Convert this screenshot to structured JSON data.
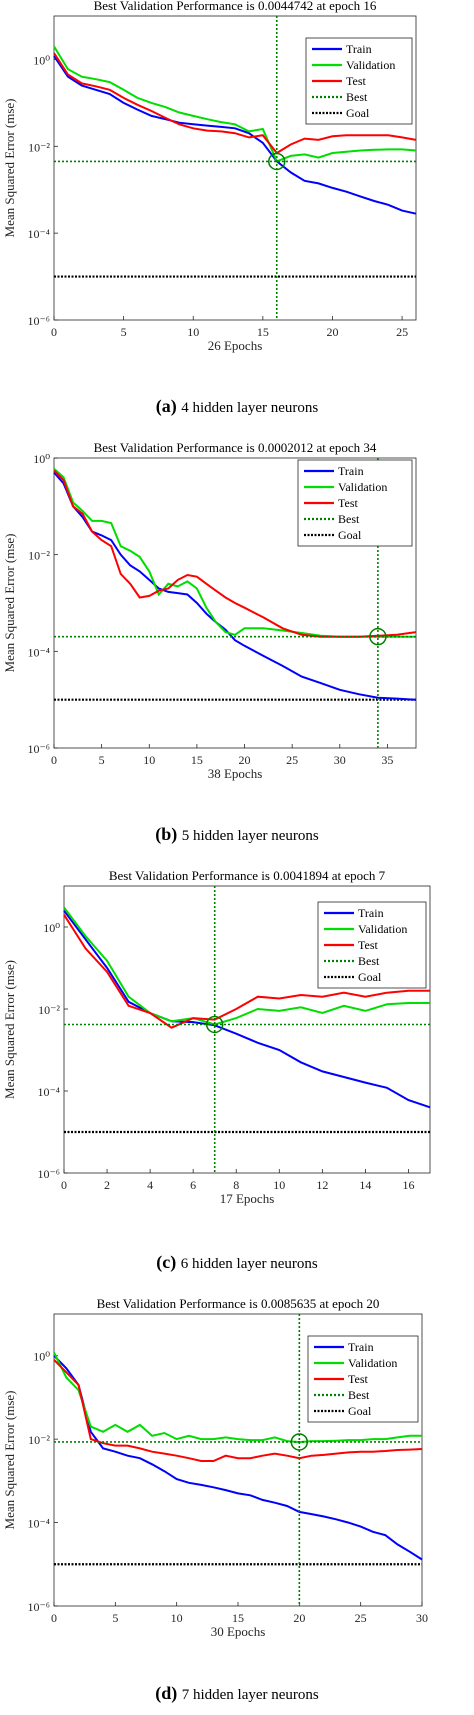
{
  "colors": {
    "train": "#0000ff",
    "validation": "#00dd00",
    "test": "#ff0000",
    "best": "#008000",
    "goal": "#000000"
  },
  "chart_data": [
    {
      "type": "line",
      "title": "Best Validation Performance is 0.0044742 at epoch 16",
      "xlabel": "26 Epochs",
      "ylabel": "Mean Squared Error  (mse)",
      "caption_letter": "(a)",
      "caption_text": "4 hidden layer neurons",
      "yscale": "log",
      "xlim": [
        0,
        26
      ],
      "ylim": [
        1e-06,
        10
      ],
      "xticks": [
        0,
        5,
        10,
        15,
        20,
        25
      ],
      "yticks": [
        1e-06,
        0.0001,
        0.01,
        1
      ],
      "ytick_labels": [
        "10⁻⁶",
        "10⁻⁴",
        "10⁻²",
        "10⁰"
      ],
      "legend_position": "top-right",
      "best": {
        "epoch": 16,
        "value": 0.0044742
      },
      "goal": 1e-05,
      "series": [
        {
          "name": "Train",
          "x": [
            0,
            1,
            2,
            3,
            4,
            5,
            6,
            7,
            8,
            9,
            10,
            11,
            12,
            13,
            14,
            15,
            16,
            17,
            18,
            19,
            20,
            21,
            22,
            23,
            24,
            25,
            26
          ],
          "y": [
            1.2,
            0.4,
            0.25,
            0.2,
            0.16,
            0.1,
            0.07,
            0.05,
            0.042,
            0.035,
            0.032,
            0.03,
            0.028,
            0.026,
            0.02,
            0.012,
            0.0045,
            0.0025,
            0.0016,
            0.0014,
            0.0011,
            0.0009,
            0.0007,
            0.00055,
            0.00045,
            0.00033,
            0.00028
          ]
        },
        {
          "name": "Validation",
          "x": [
            0,
            1,
            2,
            3,
            4,
            5,
            6,
            7,
            8,
            9,
            10,
            11,
            12,
            13,
            14,
            15,
            16,
            17,
            18,
            19,
            20,
            21,
            22,
            23,
            24,
            25,
            26
          ],
          "y": [
            2.0,
            0.6,
            0.4,
            0.35,
            0.3,
            0.2,
            0.13,
            0.1,
            0.08,
            0.06,
            0.05,
            0.042,
            0.036,
            0.032,
            0.022,
            0.025,
            0.0045,
            0.006,
            0.0065,
            0.0055,
            0.007,
            0.0075,
            0.008,
            0.0083,
            0.0085,
            0.0085,
            0.008
          ]
        },
        {
          "name": "Test",
          "x": [
            0,
            1,
            2,
            3,
            4,
            5,
            6,
            7,
            8,
            9,
            10,
            11,
            12,
            13,
            14,
            15,
            16,
            17,
            18,
            19,
            20,
            21,
            22,
            23,
            24,
            25,
            26
          ],
          "y": [
            1.4,
            0.45,
            0.28,
            0.24,
            0.2,
            0.13,
            0.09,
            0.065,
            0.045,
            0.032,
            0.026,
            0.023,
            0.022,
            0.02,
            0.016,
            0.018,
            0.007,
            0.011,
            0.015,
            0.014,
            0.017,
            0.018,
            0.018,
            0.018,
            0.018,
            0.016,
            0.014
          ]
        }
      ]
    },
    {
      "type": "line",
      "title": "Best Validation Performance is 0.0002012 at epoch 34",
      "xlabel": "38 Epochs",
      "ylabel": "Mean Squared Error  (mse)",
      "caption_letter": "(b)",
      "caption_text": "5 hidden layer neurons",
      "yscale": "log",
      "xlim": [
        0,
        38
      ],
      "ylim": [
        1e-06,
        1
      ],
      "xticks": [
        0,
        5,
        10,
        15,
        20,
        25,
        30,
        35
      ],
      "yticks": [
        1e-06,
        0.0001,
        0.01,
        1
      ],
      "ytick_labels": [
        "10⁻⁶",
        "10⁻⁴",
        "10⁻²",
        "10⁰"
      ],
      "legend_position": "top-right",
      "best": {
        "epoch": 34,
        "value": 0.0002012
      },
      "goal": 1e-05,
      "series": [
        {
          "name": "Train",
          "x": [
            0,
            1,
            2,
            3,
            4,
            5,
            6,
            7,
            8,
            9,
            10,
            11,
            12,
            13,
            14,
            15,
            16,
            17,
            18,
            19,
            20,
            22,
            24,
            26,
            28,
            30,
            32,
            34,
            36,
            38
          ],
          "y": [
            0.5,
            0.3,
            0.1,
            0.06,
            0.03,
            0.025,
            0.02,
            0.01,
            0.006,
            0.0045,
            0.003,
            0.002,
            0.0017,
            0.0016,
            0.0015,
            0.001,
            0.0006,
            0.0004,
            0.00028,
            0.00017,
            0.00013,
            8e-05,
            5e-05,
            3e-05,
            2.2e-05,
            1.6e-05,
            1.3e-05,
            1.1e-05,
            1.05e-05,
            1e-05
          ]
        },
        {
          "name": "Validation",
          "x": [
            0,
            1,
            2,
            3,
            4,
            5,
            6,
            7,
            8,
            9,
            10,
            11,
            12,
            13,
            14,
            15,
            16,
            17,
            18,
            19,
            20,
            22,
            24,
            26,
            28,
            30,
            32,
            34,
            36,
            38
          ],
          "y": [
            0.6,
            0.4,
            0.12,
            0.08,
            0.05,
            0.05,
            0.045,
            0.015,
            0.012,
            0.009,
            0.0045,
            0.0015,
            0.0025,
            0.0022,
            0.0028,
            0.002,
            0.0008,
            0.0004,
            0.00025,
            0.00022,
            0.0003,
            0.0003,
            0.00027,
            0.00024,
            0.00021,
            0.0002,
            0.0002,
            0.0002,
            0.0002,
            0.0002
          ]
        },
        {
          "name": "Test",
          "x": [
            0,
            1,
            2,
            3,
            4,
            5,
            6,
            7,
            8,
            9,
            10,
            11,
            12,
            13,
            14,
            15,
            16,
            17,
            18,
            19,
            20,
            22,
            24,
            26,
            28,
            30,
            32,
            34,
            36,
            38
          ],
          "y": [
            0.55,
            0.35,
            0.1,
            0.07,
            0.03,
            0.02,
            0.015,
            0.004,
            0.0025,
            0.0013,
            0.0014,
            0.0018,
            0.002,
            0.003,
            0.0038,
            0.0035,
            0.0025,
            0.0018,
            0.0013,
            0.001,
            0.0008,
            0.0005,
            0.0003,
            0.00022,
            0.0002,
            0.0002,
            0.0002,
            0.00021,
            0.00022,
            0.00025
          ]
        }
      ]
    },
    {
      "type": "line",
      "title": "Best Validation Performance is 0.0041894 at epoch 7",
      "xlabel": "17 Epochs",
      "ylabel": "Mean Squared Error  (mse)",
      "caption_letter": "(c)",
      "caption_text": "6 hidden layer neurons",
      "yscale": "log",
      "xlim": [
        0,
        17
      ],
      "ylim": [
        1e-06,
        10
      ],
      "xticks": [
        0,
        2,
        4,
        6,
        8,
        10,
        12,
        14,
        16
      ],
      "yticks": [
        1e-06,
        0.0001,
        0.01,
        1
      ],
      "ytick_labels": [
        "10⁻⁶",
        "10⁻⁴",
        "10⁻²",
        "10⁰"
      ],
      "legend_position": "top-right",
      "best": {
        "epoch": 7,
        "value": 0.0041894
      },
      "goal": 1e-05,
      "series": [
        {
          "name": "Train",
          "x": [
            0,
            1,
            2,
            3,
            4,
            5,
            6,
            7,
            8,
            9,
            10,
            11,
            12,
            13,
            14,
            15,
            16,
            17
          ],
          "y": [
            2.5,
            0.5,
            0.1,
            0.015,
            0.008,
            0.005,
            0.0048,
            0.004,
            0.0025,
            0.0015,
            0.001,
            0.0005,
            0.0003,
            0.00022,
            0.00016,
            0.00012,
            6e-05,
            4e-05
          ]
        },
        {
          "name": "Validation",
          "x": [
            0,
            1,
            2,
            3,
            4,
            5,
            6,
            7,
            8,
            9,
            10,
            11,
            12,
            13,
            14,
            15,
            16,
            17
          ],
          "y": [
            3.0,
            0.6,
            0.15,
            0.02,
            0.008,
            0.005,
            0.006,
            0.0042,
            0.006,
            0.01,
            0.009,
            0.011,
            0.008,
            0.012,
            0.009,
            0.013,
            0.014,
            0.014
          ]
        },
        {
          "name": "Test",
          "x": [
            0,
            1,
            2,
            3,
            4,
            5,
            6,
            7,
            8,
            9,
            10,
            11,
            12,
            13,
            14,
            15,
            16,
            17
          ],
          "y": [
            2.0,
            0.3,
            0.08,
            0.012,
            0.008,
            0.0035,
            0.006,
            0.0055,
            0.01,
            0.02,
            0.018,
            0.022,
            0.02,
            0.025,
            0.02,
            0.025,
            0.028,
            0.028
          ]
        }
      ]
    },
    {
      "type": "line",
      "title": "Best Validation Performance is 0.0085635 at epoch 20",
      "xlabel": "30 Epochs",
      "ylabel": "Mean Squared Error  (mse)",
      "caption_letter": "(d)",
      "caption_text": "7 hidden layer neurons",
      "yscale": "log",
      "xlim": [
        0,
        30
      ],
      "ylim": [
        1e-06,
        10
      ],
      "xticks": [
        0,
        5,
        10,
        15,
        20,
        25,
        30
      ],
      "yticks": [
        1e-06,
        0.0001,
        0.01,
        1
      ],
      "ytick_labels": [
        "10⁻⁶",
        "10⁻⁴",
        "10⁻²",
        "10⁰"
      ],
      "legend_position": "top-right",
      "best": {
        "epoch": 20,
        "value": 0.0085635
      },
      "goal": 1e-05,
      "series": [
        {
          "name": "Train",
          "x": [
            0,
            1,
            2,
            3,
            4,
            5,
            6,
            7,
            8,
            9,
            10,
            11,
            12,
            13,
            14,
            15,
            16,
            17,
            18,
            19,
            20,
            21,
            22,
            23,
            24,
            25,
            26,
            27,
            28,
            29,
            30
          ],
          "y": [
            1.0,
            0.5,
            0.2,
            0.015,
            0.006,
            0.005,
            0.004,
            0.0035,
            0.0025,
            0.0017,
            0.0011,
            0.0009,
            0.0008,
            0.0007,
            0.0006,
            0.0005,
            0.00045,
            0.00035,
            0.0003,
            0.00025,
            0.00018,
            0.00016,
            0.00014,
            0.00012,
            0.0001,
            8e-05,
            6e-05,
            5e-05,
            3e-05,
            2e-05,
            1.3e-05
          ]
        },
        {
          "name": "Validation",
          "x": [
            0,
            1,
            2,
            3,
            4,
            5,
            6,
            7,
            8,
            9,
            10,
            11,
            12,
            13,
            14,
            15,
            16,
            17,
            18,
            19,
            20,
            21,
            22,
            23,
            24,
            25,
            26,
            27,
            28,
            29,
            30
          ],
          "y": [
            1.2,
            0.3,
            0.15,
            0.02,
            0.015,
            0.022,
            0.015,
            0.022,
            0.012,
            0.014,
            0.01,
            0.012,
            0.01,
            0.01,
            0.011,
            0.01,
            0.0095,
            0.0095,
            0.011,
            0.009,
            0.0085,
            0.009,
            0.009,
            0.0092,
            0.0095,
            0.0095,
            0.01,
            0.01,
            0.011,
            0.012,
            0.012
          ]
        },
        {
          "name": "Test",
          "x": [
            0,
            1,
            2,
            3,
            4,
            5,
            6,
            7,
            8,
            9,
            10,
            11,
            12,
            13,
            14,
            15,
            16,
            17,
            18,
            19,
            20,
            21,
            22,
            23,
            24,
            25,
            26,
            27,
            28,
            29,
            30
          ],
          "y": [
            0.8,
            0.4,
            0.2,
            0.01,
            0.008,
            0.007,
            0.007,
            0.006,
            0.005,
            0.0045,
            0.004,
            0.0035,
            0.003,
            0.003,
            0.004,
            0.0035,
            0.0035,
            0.004,
            0.0045,
            0.004,
            0.0035,
            0.004,
            0.0042,
            0.0045,
            0.0048,
            0.005,
            0.005,
            0.0052,
            0.0055,
            0.0056,
            0.0058
          ]
        }
      ]
    }
  ]
}
